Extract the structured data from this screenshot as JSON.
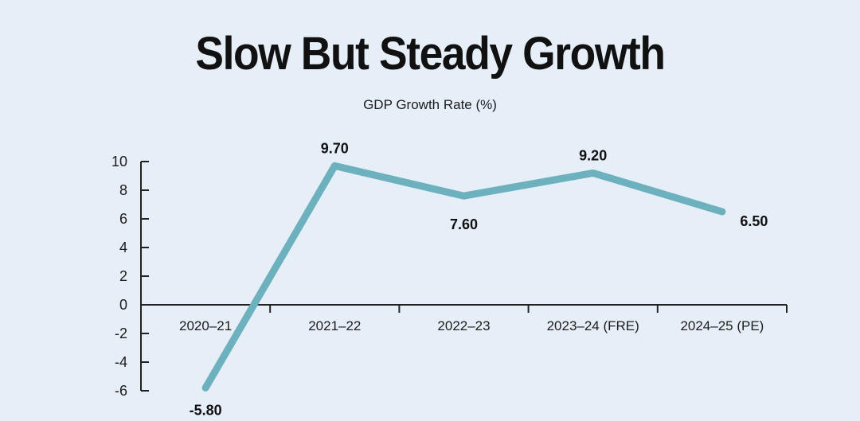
{
  "chart_data": {
    "type": "line",
    "title": "Slow But Steady Growth",
    "subtitle": "GDP Growth Rate (%)",
    "categories": [
      "2020–21",
      "2021–22",
      "2022–23",
      "2023–24 (FRE)",
      "2024–25 (PE)"
    ],
    "values": [
      -5.8,
      9.7,
      7.6,
      9.2,
      6.5
    ],
    "data_labels": [
      "-5.80",
      "9.70",
      "7.60",
      "9.20",
      "6.50"
    ],
    "yticks": [
      "10",
      "8",
      "6",
      "4",
      "2",
      "0",
      "-2",
      "-4",
      "-6"
    ],
    "ylim": [
      -6,
      10
    ],
    "grid": false,
    "line_color": "#6cb1bd"
  }
}
